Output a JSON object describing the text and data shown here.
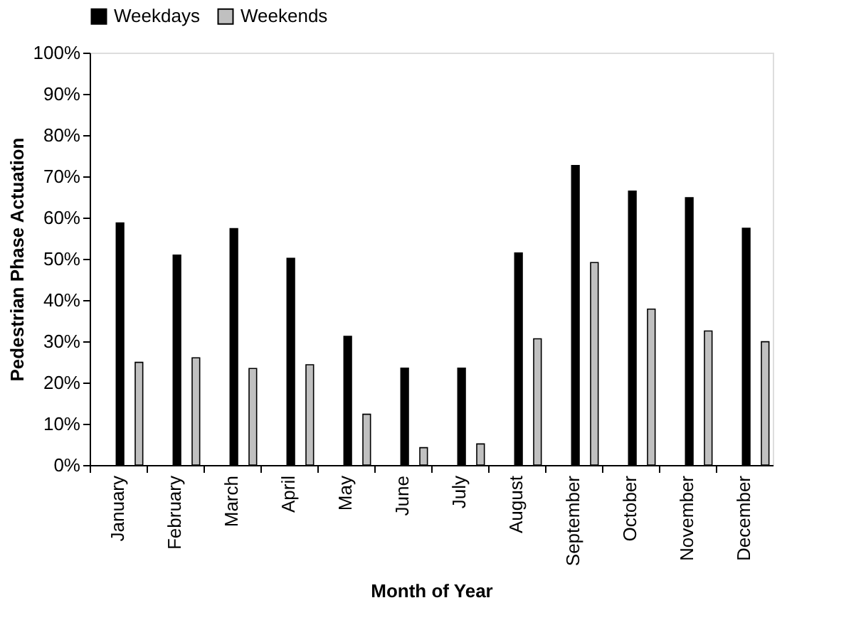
{
  "chart_data": {
    "type": "bar",
    "xlabel": "Month of Year",
    "ylabel": "Pedestrian Phase Actuation",
    "categories": [
      "January",
      "February",
      "March",
      "April",
      "May",
      "June",
      "July",
      "August",
      "September",
      "October",
      "November",
      "December"
    ],
    "series": [
      {
        "name": "Weekdays",
        "color": "#000000",
        "values": [
          58.7,
          50.9,
          57.3,
          50.1,
          31.2,
          23.5,
          23.5,
          51.4,
          72.6,
          66.4,
          64.8,
          57.4
        ]
      },
      {
        "name": "Weekends",
        "color": "#c0c0c0",
        "values": [
          24.9,
          26.0,
          23.4,
          24.3,
          12.3,
          4.2,
          5.1,
          30.6,
          49.1,
          37.8,
          32.5,
          29.9
        ]
      }
    ],
    "ylim": [
      0,
      100
    ],
    "yticks": [
      {
        "value": 0,
        "label": "0%"
      },
      {
        "value": 10,
        "label": "10%"
      },
      {
        "value": 20,
        "label": "20%"
      },
      {
        "value": 30,
        "label": "30%"
      },
      {
        "value": 40,
        "label": "40%"
      },
      {
        "value": 50,
        "label": "50%"
      },
      {
        "value": 60,
        "label": "60%"
      },
      {
        "value": 70,
        "label": "70%"
      },
      {
        "value": 80,
        "label": "80%"
      },
      {
        "value": 90,
        "label": "90%"
      },
      {
        "value": 100,
        "label": "100%"
      }
    ],
    "grid": false,
    "legend": "top"
  }
}
